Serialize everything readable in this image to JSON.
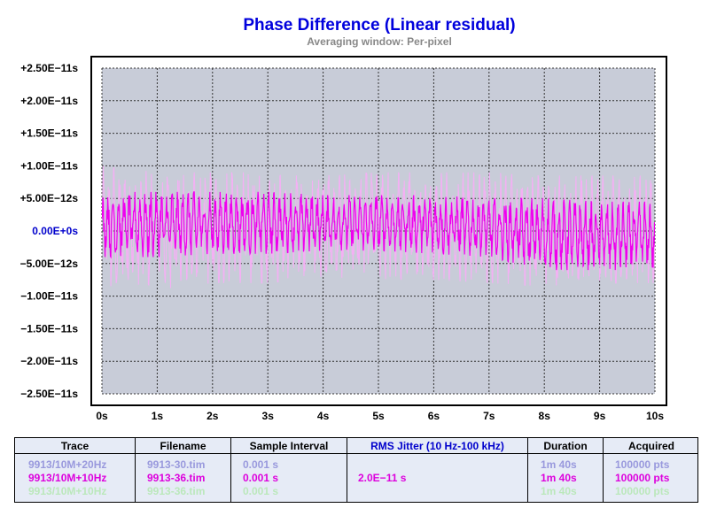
{
  "title": "Phase Difference (Linear residual)",
  "subtitle": "Averaging window: Per-pixel",
  "colors": {
    "plot_background": "#c8ccd8",
    "series_primary": "#ee00ee",
    "series_secondary": "#f4b0f4",
    "grid": "#333333",
    "title": "#0000dd"
  },
  "chart_data": {
    "type": "line",
    "title": "Phase Difference (Linear residual)",
    "subtitle": "Averaging window: Per-pixel",
    "xlabel": "",
    "ylabel": "",
    "xlim": [
      0,
      10
    ],
    "ylim": [
      -2.5e-11,
      2.5e-11
    ],
    "grid": true,
    "x_ticks": [
      "0s",
      "1s",
      "2s",
      "3s",
      "4s",
      "5s",
      "6s",
      "7s",
      "8s",
      "9s",
      "10s"
    ],
    "y_ticks": [
      "+2.50E−11s",
      "+2.00E−11s",
      "+1.50E−11s",
      "+1.00E−11s",
      "+5.00E−12s",
      "0.00E+0s",
      "−5.00E−12s",
      "−1.00E−11s",
      "−1.50E−11s",
      "−2.00E−11s",
      "−2.50E−11s"
    ],
    "series": [
      {
        "color": "#f4b0f4",
        "description": "lighter trace, approx 0.9E-11s peaks",
        "x": [
          0,
          1,
          2,
          3,
          4,
          5,
          6,
          7,
          8,
          9,
          10
        ],
        "y_max": [
          1e-11,
          9e-12,
          9e-12,
          9e-12,
          8.5e-12,
          9e-12,
          9e-12,
          9e-12,
          8.5e-12,
          8.5e-12,
          8.5e-12
        ],
        "y_min": [
          -9e-12,
          -9e-12,
          -8e-12,
          -8e-12,
          -7e-12,
          -7.5e-12,
          -7.5e-12,
          -8e-12,
          -8.5e-12,
          -8e-12,
          -8e-12
        ]
      },
      {
        "color": "#ee00ee",
        "description": "main oscillating trace",
        "x": [
          0,
          1,
          2,
          3,
          4,
          5,
          6,
          7,
          8,
          9,
          10
        ],
        "y_max": [
          6e-12,
          6e-12,
          6e-12,
          6e-12,
          5.5e-12,
          5.5e-12,
          5.5e-12,
          5e-12,
          5e-12,
          4.5e-12,
          4.5e-12
        ],
        "y_min": [
          -4e-12,
          -4e-12,
          -3.5e-12,
          -3.5e-12,
          -3e-12,
          -3e-12,
          -3.5e-12,
          -4e-12,
          -6e-12,
          -6e-12,
          -6e-12
        ]
      }
    ]
  },
  "legend": {
    "headers": {
      "trace": "Trace",
      "filename": "Filename",
      "sample_interval": "Sample Interval",
      "rms_jitter": "RMS Jitter (10 Hz-100 kHz)",
      "duration": "Duration",
      "acquired": "Acquired"
    },
    "rows": [
      {
        "trace": "9913/10M+20Hz",
        "filename": "9913-30.tim",
        "sample_interval": "0.001 s",
        "rms_jitter": "",
        "duration": "1m 40s",
        "acquired": "100000 pts",
        "color": "#9999dd"
      },
      {
        "trace": "9913/10M+10Hz",
        "filename": "9913-36.tim",
        "sample_interval": "0.001 s",
        "rms_jitter": "2.0E−11 s",
        "duration": "1m 40s",
        "acquired": "100000 pts",
        "color": "#dd00dd"
      },
      {
        "trace": "9913/10M+10Hz",
        "filename": "9913-36.tim",
        "sample_interval": "0.001 s",
        "rms_jitter": "",
        "duration": "1m 40s",
        "acquired": "100000 pts",
        "color": "#bbe8bb"
      }
    ]
  }
}
